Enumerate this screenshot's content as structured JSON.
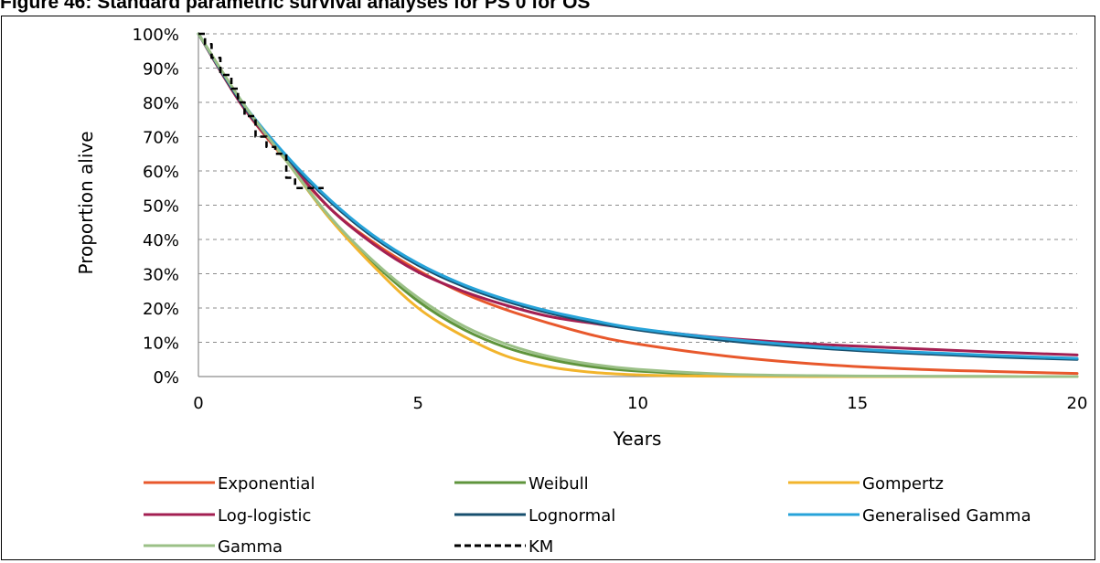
{
  "figure_title": "Figure 46: Standard parametric survival analyses for PS 0 for OS",
  "chart_data": {
    "type": "line",
    "xlabel": "Years",
    "ylabel": "Proportion alive",
    "xlim": [
      0,
      20
    ],
    "ylim": [
      0,
      1
    ],
    "x_ticks": [
      "0",
      "5",
      "10",
      "15",
      "20"
    ],
    "y_ticks": [
      "0%",
      "10%",
      "20%",
      "30%",
      "40%",
      "50%",
      "60%",
      "70%",
      "80%",
      "90%",
      "100%"
    ],
    "grid": "horizontal dashed",
    "legend_position": "bottom",
    "series": [
      {
        "name": "Exponential",
        "color": "#e8582c",
        "style": "solid",
        "x": [
          0,
          1,
          2,
          3,
          4,
          5,
          6,
          7,
          8,
          9,
          10,
          12,
          14,
          16,
          18,
          20
        ],
        "y": [
          1.0,
          0.79,
          0.63,
          0.49,
          0.39,
          0.31,
          0.245,
          0.195,
          0.155,
          0.12,
          0.095,
          0.06,
          0.037,
          0.023,
          0.015,
          0.009
        ]
      },
      {
        "name": "Weibull",
        "color": "#5f943c",
        "style": "solid",
        "x": [
          0,
          1,
          2,
          3,
          4,
          5,
          6,
          7,
          8,
          9,
          10,
          12,
          14,
          16,
          18,
          20
        ],
        "y": [
          1.0,
          0.8,
          0.63,
          0.46,
          0.33,
          0.22,
          0.14,
          0.085,
          0.05,
          0.028,
          0.016,
          0.005,
          0.0015,
          0.0005,
          0.0002,
          0.0
        ]
      },
      {
        "name": "Gompertz",
        "color": "#f2b42c",
        "style": "solid",
        "x": [
          0,
          1,
          2,
          3,
          4,
          5,
          6,
          7,
          8,
          9,
          10,
          11,
          12,
          14,
          16,
          20
        ],
        "y": [
          1.0,
          0.8,
          0.63,
          0.46,
          0.32,
          0.2,
          0.12,
          0.06,
          0.028,
          0.012,
          0.005,
          0.002,
          0.001,
          0.0,
          0.0,
          0.0
        ]
      },
      {
        "name": "Log-logistic",
        "color": "#a31f52",
        "style": "solid",
        "x": [
          0,
          1,
          2,
          3,
          4,
          5,
          6,
          7,
          8,
          9,
          10,
          12,
          14,
          16,
          18,
          20
        ],
        "y": [
          1.0,
          0.79,
          0.635,
          0.49,
          0.385,
          0.305,
          0.25,
          0.208,
          0.175,
          0.155,
          0.138,
          0.112,
          0.095,
          0.083,
          0.072,
          0.063
        ]
      },
      {
        "name": "Lognormal",
        "color": "#174f6e",
        "style": "solid",
        "x": [
          0,
          1,
          2,
          3,
          4,
          5,
          6,
          7,
          8,
          9,
          10,
          12,
          14,
          16,
          18,
          20
        ],
        "y": [
          1.0,
          0.795,
          0.64,
          0.51,
          0.405,
          0.325,
          0.265,
          0.22,
          0.185,
          0.158,
          0.136,
          0.105,
          0.084,
          0.069,
          0.058,
          0.05
        ]
      },
      {
        "name": "Generalised Gamma",
        "color": "#27a3d9",
        "style": "solid",
        "x": [
          0,
          1,
          2,
          3,
          4,
          5,
          6,
          7,
          8,
          9,
          10,
          12,
          14,
          16,
          18,
          20
        ],
        "y": [
          1.0,
          0.8,
          0.645,
          0.515,
          0.41,
          0.33,
          0.27,
          0.225,
          0.19,
          0.163,
          0.14,
          0.11,
          0.088,
          0.073,
          0.062,
          0.053
        ]
      },
      {
        "name": "Gamma",
        "color": "#9bc087",
        "style": "solid",
        "x": [
          0,
          1,
          2,
          3,
          4,
          5,
          6,
          7,
          8,
          9,
          10,
          12,
          14,
          16,
          18,
          20
        ],
        "y": [
          1.0,
          0.8,
          0.63,
          0.465,
          0.335,
          0.23,
          0.15,
          0.095,
          0.058,
          0.035,
          0.021,
          0.007,
          0.0025,
          0.001,
          0.0003,
          0.0
        ]
      },
      {
        "name": "KM",
        "color": "#000000",
        "style": "dashed",
        "step": true,
        "x": [
          0,
          0.15,
          0.3,
          0.5,
          0.75,
          0.9,
          1.05,
          1.3,
          1.55,
          1.75,
          2.0,
          2.2,
          2.85
        ],
        "y": [
          1.0,
          0.97,
          0.93,
          0.88,
          0.84,
          0.8,
          0.76,
          0.7,
          0.67,
          0.65,
          0.58,
          0.55,
          0.55
        ]
      }
    ]
  }
}
